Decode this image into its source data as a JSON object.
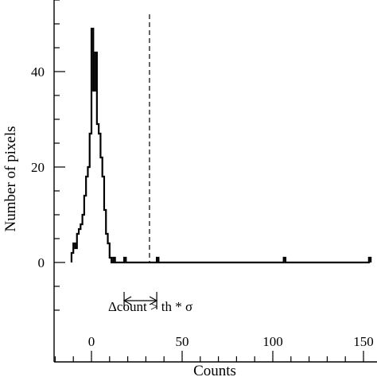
{
  "chart_data": {
    "type": "histogram",
    "xlabel": "Counts",
    "ylabel": "Number of pixels",
    "xlim": [
      -20,
      155
    ],
    "ylim": [
      -15,
      55
    ],
    "x_ticks": [
      0,
      50,
      100,
      150
    ],
    "x_tick_labels": [
      "0",
      "50",
      "100",
      "150"
    ],
    "y_ticks": [
      0,
      20,
      40
    ],
    "y_tick_labels": [
      "0",
      "20",
      "40"
    ],
    "bin_width": 1,
    "bins": [
      {
        "x": -11,
        "count": 2
      },
      {
        "x": -10,
        "count": 4
      },
      {
        "x": -9,
        "count": 3
      },
      {
        "x": -8,
        "count": 6
      },
      {
        "x": -7,
        "count": 7
      },
      {
        "x": -6,
        "count": 8
      },
      {
        "x": -5,
        "count": 10
      },
      {
        "x": -4,
        "count": 14
      },
      {
        "x": -3,
        "count": 18
      },
      {
        "x": -2,
        "count": 20
      },
      {
        "x": -1,
        "count": 27
      },
      {
        "x": 0,
        "count": 49
      },
      {
        "x": 1,
        "count": 36
      },
      {
        "x": 2,
        "count": 44
      },
      {
        "x": 3,
        "count": 29
      },
      {
        "x": 4,
        "count": 27
      },
      {
        "x": 5,
        "count": 22
      },
      {
        "x": 6,
        "count": 18
      },
      {
        "x": 7,
        "count": 11
      },
      {
        "x": 8,
        "count": 6
      },
      {
        "x": 9,
        "count": 4
      },
      {
        "x": 10,
        "count": 1
      },
      {
        "x": 11,
        "count": 0
      },
      {
        "x": 12,
        "count": 1
      },
      {
        "x": 18,
        "count": 1
      },
      {
        "x": 36,
        "count": 1
      },
      {
        "x": 106,
        "count": 1
      },
      {
        "x": 153,
        "count": 1
      }
    ],
    "threshold_line": {
      "x": 32,
      "style": "dashed"
    },
    "interval_arrow": {
      "from": 18,
      "to": 36
    },
    "annotation": "Δcount > th * σ"
  }
}
